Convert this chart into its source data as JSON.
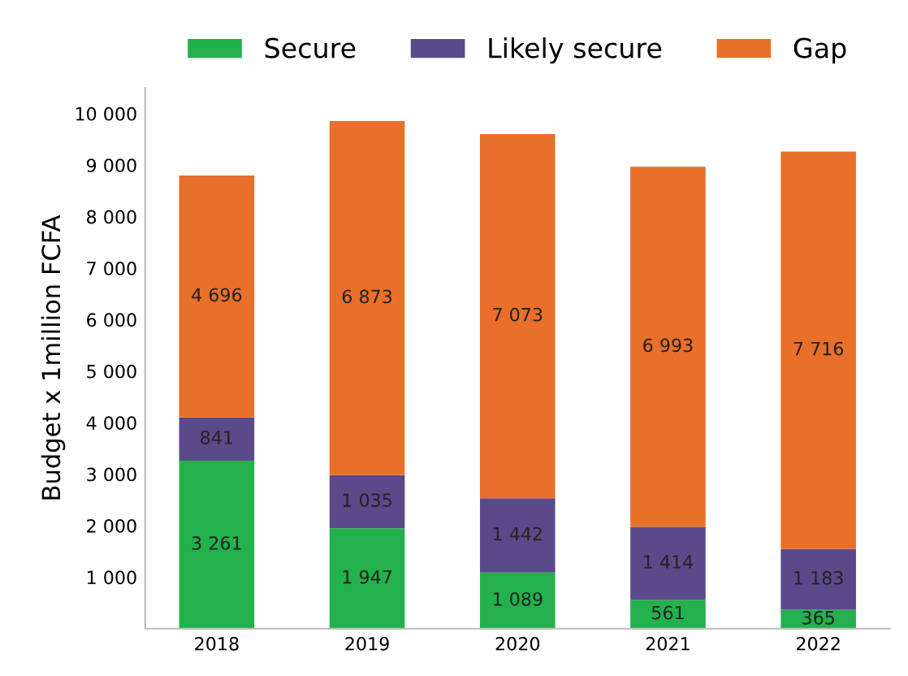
{
  "chart_data": {
    "type": "bar",
    "stacked": true,
    "ylabel": "Budget x 1million FCFA",
    "categories": [
      "2018",
      "2019",
      "2020",
      "2021",
      "2022"
    ],
    "series": [
      {
        "name": "Secure",
        "color": "#22b14c",
        "values": [
          3261,
          1947,
          1089,
          561,
          365
        ],
        "value_labels": [
          "3 261",
          "1 947",
          "1 089",
          "561",
          "365"
        ]
      },
      {
        "name": "Likely secure",
        "color": "#5b4a8a",
        "values": [
          841,
          1035,
          1442,
          1414,
          1183
        ],
        "value_labels": [
          "841",
          "1 035",
          "1 442",
          "1 414",
          "1 183"
        ]
      },
      {
        "name": "Gap",
        "color": "#e8702a",
        "values": [
          4696,
          6873,
          7073,
          6993,
          7716
        ],
        "value_labels": [
          "4 696",
          "6 873",
          "7 073",
          "6 993",
          "7 716"
        ]
      }
    ],
    "ylim": [
      0,
      10500
    ],
    "yticks": [
      {
        "value": 1000,
        "label": "1 000"
      },
      {
        "value": 2000,
        "label": "2 000"
      },
      {
        "value": 3000,
        "label": "3 000"
      },
      {
        "value": 4000,
        "label": "4 000"
      },
      {
        "value": 5000,
        "label": "5 000"
      },
      {
        "value": 6000,
        "label": "6 000"
      },
      {
        "value": 7000,
        "label": "7 000"
      },
      {
        "value": 8000,
        "label": "8 000"
      },
      {
        "value": 9000,
        "label": "9 000"
      },
      {
        "value": 10000,
        "label": "10 000"
      }
    ],
    "legend": "top",
    "grid": false
  }
}
